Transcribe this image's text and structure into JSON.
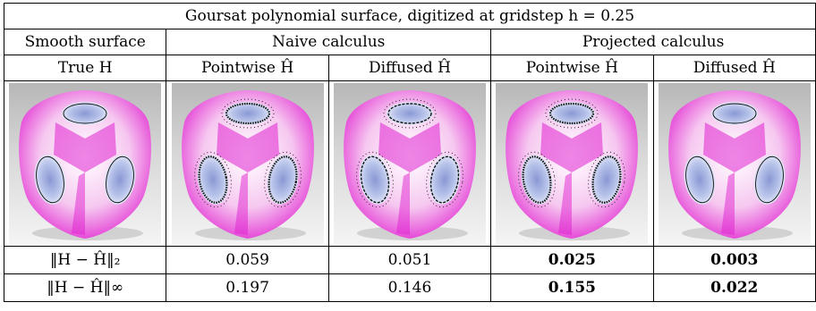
{
  "title": "Goursat polynomial surface, digitized at gridstep h = 0.25",
  "groups": {
    "smooth": "Smooth surface",
    "naive": "Naive calculus",
    "projected": "Projected calculus"
  },
  "columns": [
    "True H",
    "Pointwise Ĥ",
    "Diffused Ĥ",
    "Pointwise Ĥ",
    "Diffused Ĥ"
  ],
  "images": [
    {
      "label": "true-h",
      "style": "smooth"
    },
    {
      "label": "naive-pointwise",
      "style": "noisy"
    },
    {
      "label": "naive-diffused",
      "style": "semi"
    },
    {
      "label": "projected-pointwise",
      "style": "noisy"
    },
    {
      "label": "projected-diffused",
      "style": "smooth"
    }
  ],
  "rows": [
    {
      "metric": "‖H − Ĥ‖₂",
      "values": [
        "0.059",
        "0.051",
        "0.025",
        "0.003"
      ]
    },
    {
      "metric": "‖H − Ĥ‖∞",
      "values": [
        "0.197",
        "0.146",
        "0.155",
        "0.022"
      ]
    }
  ],
  "bold_columns": [
    2,
    3
  ],
  "colors": {
    "magenta": "#e020d0",
    "blue_patch": "#b8c4ea",
    "background_top": "#b7b7b7",
    "background_bottom": "#f4f4f4"
  }
}
